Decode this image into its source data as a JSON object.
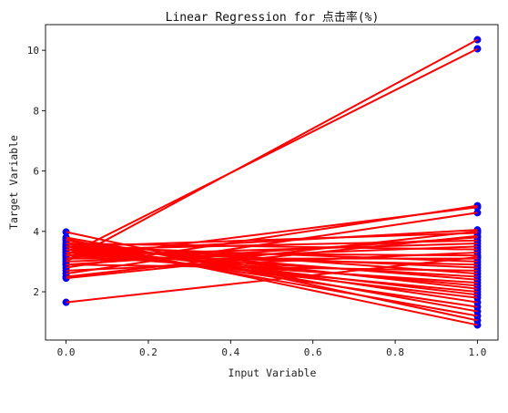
{
  "chart_data": {
    "type": "line",
    "title": "Linear Regression for 点击率(%)",
    "xlabel": "Input Variable",
    "ylabel": "Target Variable",
    "xlim": [
      -0.05,
      1.05
    ],
    "ylim": [
      0.4,
      10.85
    ],
    "x_ticks": [
      0.0,
      0.2,
      0.4,
      0.6,
      0.8,
      1.0
    ],
    "x_tick_labels": [
      "0.0",
      "0.2",
      "0.4",
      "0.6",
      "0.8",
      "1.0"
    ],
    "y_ticks": [
      2,
      4,
      6,
      8,
      10
    ],
    "y_tick_labels": [
      "2",
      "4",
      "6",
      "8",
      "10"
    ],
    "grid": false,
    "legend": "none",
    "line_color": "#ff0000",
    "marker_color": "#0000ff",
    "segments": [
      {
        "x": [
          0,
          1
        ],
        "y": [
          3.0,
          10.35
        ]
      },
      {
        "x": [
          0,
          1
        ],
        "y": [
          3.2,
          10.05
        ]
      },
      {
        "x": [
          0,
          1
        ],
        "y": [
          2.8,
          4.85
        ]
      },
      {
        "x": [
          0,
          1
        ],
        "y": [
          3.1,
          4.8
        ]
      },
      {
        "x": [
          0,
          1
        ],
        "y": [
          2.6,
          4.62
        ]
      },
      {
        "x": [
          0,
          1
        ],
        "y": [
          3.3,
          4.05
        ]
      },
      {
        "x": [
          0,
          1
        ],
        "y": [
          2.5,
          4.0
        ]
      },
      {
        "x": [
          0,
          1
        ],
        "y": [
          3.5,
          3.95
        ]
      },
      {
        "x": [
          0,
          1
        ],
        "y": [
          2.9,
          3.8
        ]
      },
      {
        "x": [
          0,
          1
        ],
        "y": [
          3.4,
          3.7
        ]
      },
      {
        "x": [
          0,
          1
        ],
        "y": [
          3.2,
          3.6
        ]
      },
      {
        "x": [
          0,
          1
        ],
        "y": [
          3.0,
          3.5
        ]
      },
      {
        "x": [
          0,
          1
        ],
        "y": [
          3.6,
          3.4
        ]
      },
      {
        "x": [
          0,
          1
        ],
        "y": [
          2.7,
          3.3
        ]
      },
      {
        "x": [
          0,
          1
        ],
        "y": [
          3.3,
          3.2
        ]
      },
      {
        "x": [
          0,
          1
        ],
        "y": [
          3.1,
          3.1
        ]
      },
      {
        "x": [
          0,
          1
        ],
        "y": [
          3.5,
          3.0
        ]
      },
      {
        "x": [
          0,
          1
        ],
        "y": [
          3.2,
          2.9
        ]
      },
      {
        "x": [
          0,
          1
        ],
        "y": [
          3.4,
          2.8
        ]
      },
      {
        "x": [
          0,
          1
        ],
        "y": [
          2.9,
          2.7
        ]
      },
      {
        "x": [
          0,
          1
        ],
        "y": [
          3.6,
          2.6
        ]
      },
      {
        "x": [
          0,
          1
        ],
        "y": [
          3.3,
          2.5
        ]
      },
      {
        "x": [
          0,
          1
        ],
        "y": [
          3.5,
          2.4
        ]
      },
      {
        "x": [
          0,
          1
        ],
        "y": [
          3.2,
          2.3
        ]
      },
      {
        "x": [
          0,
          1
        ],
        "y": [
          3.4,
          2.2
        ]
      },
      {
        "x": [
          0,
          1
        ],
        "y": [
          3.6,
          2.1
        ]
      },
      {
        "x": [
          0,
          1
        ],
        "y": [
          3.3,
          2.0
        ]
      },
      {
        "x": [
          0,
          1
        ],
        "y": [
          3.5,
          1.9
        ]
      },
      {
        "x": [
          0,
          1
        ],
        "y": [
          3.4,
          1.8
        ]
      },
      {
        "x": [
          0,
          1
        ],
        "y": [
          3.7,
          1.65
        ]
      },
      {
        "x": [
          0,
          1
        ],
        "y": [
          3.5,
          1.5
        ]
      },
      {
        "x": [
          0,
          1
        ],
        "y": [
          3.8,
          1.35
        ]
      },
      {
        "x": [
          0,
          1
        ],
        "y": [
          3.6,
          1.2
        ]
      },
      {
        "x": [
          0,
          1
        ],
        "y": [
          3.98,
          1.05
        ]
      },
      {
        "x": [
          0,
          1
        ],
        "y": [
          3.75,
          0.9
        ]
      },
      {
        "x": [
          0,
          1
        ],
        "y": [
          2.45,
          3.85
        ]
      },
      {
        "x": [
          0,
          1
        ],
        "y": [
          1.65,
          3.15
        ]
      }
    ]
  }
}
